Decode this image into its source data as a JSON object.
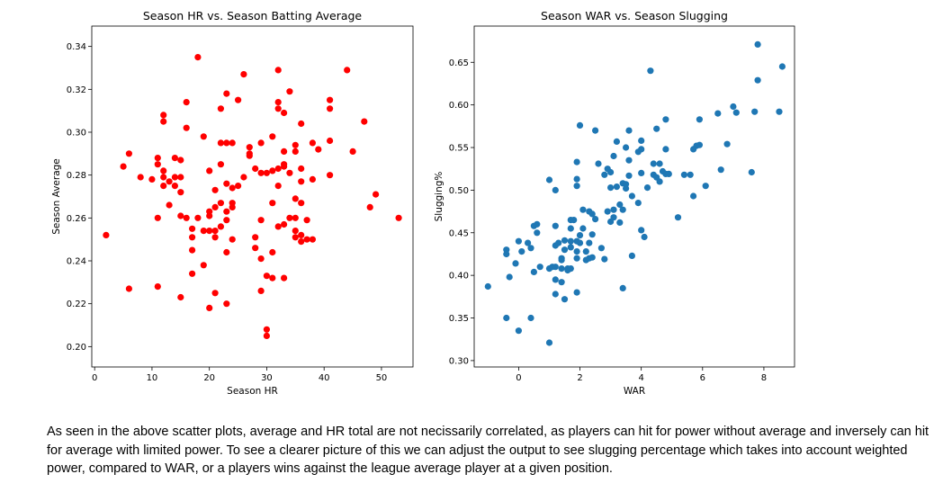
{
  "chart_data": [
    {
      "type": "scatter",
      "title": "Season HR vs. Season Batting Average",
      "xlabel": "Season HR",
      "ylabel": "Season Average",
      "xlim": [
        -0.5,
        55.5
      ],
      "ylim": [
        0.1905,
        0.3495
      ],
      "xticks": [
        0,
        10,
        20,
        30,
        40,
        50
      ],
      "yticks": [
        0.2,
        0.22,
        0.24,
        0.26,
        0.28,
        0.3,
        0.32,
        0.34
      ],
      "ytick_labels": [
        "0.20",
        "0.22",
        "0.24",
        "0.26",
        "0.28",
        "0.30",
        "0.32",
        "0.34"
      ],
      "grid": false,
      "color": "#ff0000",
      "points": [
        [
          2,
          0.252
        ],
        [
          5,
          0.284
        ],
        [
          6,
          0.29
        ],
        [
          6,
          0.227
        ],
        [
          8,
          0.279
        ],
        [
          10,
          0.278
        ],
        [
          11,
          0.288
        ],
        [
          11,
          0.285
        ],
        [
          11,
          0.26
        ],
        [
          11,
          0.228
        ],
        [
          12,
          0.308
        ],
        [
          12,
          0.305
        ],
        [
          12,
          0.282
        ],
        [
          12,
          0.279
        ],
        [
          12,
          0.275
        ],
        [
          13,
          0.277
        ],
        [
          13,
          0.266
        ],
        [
          14,
          0.288
        ],
        [
          14,
          0.279
        ],
        [
          14,
          0.275
        ],
        [
          15,
          0.287
        ],
        [
          15,
          0.279
        ],
        [
          15,
          0.272
        ],
        [
          15,
          0.261
        ],
        [
          15,
          0.223
        ],
        [
          16,
          0.314
        ],
        [
          16,
          0.302
        ],
        [
          16,
          0.26
        ],
        [
          17,
          0.255
        ],
        [
          17,
          0.251
        ],
        [
          17,
          0.245
        ],
        [
          17,
          0.234
        ],
        [
          18,
          0.335
        ],
        [
          18,
          0.26
        ],
        [
          19,
          0.298
        ],
        [
          19,
          0.254
        ],
        [
          19,
          0.238
        ],
        [
          20,
          0.282
        ],
        [
          20,
          0.263
        ],
        [
          20,
          0.261
        ],
        [
          20,
          0.254
        ],
        [
          20,
          0.218
        ],
        [
          21,
          0.273
        ],
        [
          21,
          0.265
        ],
        [
          21,
          0.254
        ],
        [
          21,
          0.251
        ],
        [
          21,
          0.225
        ],
        [
          22,
          0.311
        ],
        [
          22,
          0.295
        ],
        [
          22,
          0.285
        ],
        [
          22,
          0.267
        ],
        [
          22,
          0.256
        ],
        [
          23,
          0.318
        ],
        [
          23,
          0.295
        ],
        [
          23,
          0.276
        ],
        [
          23,
          0.263
        ],
        [
          23,
          0.259
        ],
        [
          23,
          0.244
        ],
        [
          23,
          0.22
        ],
        [
          24,
          0.295
        ],
        [
          24,
          0.274
        ],
        [
          24,
          0.267
        ],
        [
          24,
          0.265
        ],
        [
          24,
          0.25
        ],
        [
          25,
          0.315
        ],
        [
          25,
          0.275
        ],
        [
          26,
          0.327
        ],
        [
          26,
          0.279
        ],
        [
          27,
          0.293
        ],
        [
          27,
          0.29
        ],
        [
          27,
          0.289
        ],
        [
          28,
          0.283
        ],
        [
          28,
          0.251
        ],
        [
          28,
          0.246
        ],
        [
          29,
          0.295
        ],
        [
          29,
          0.281
        ],
        [
          29,
          0.259
        ],
        [
          29,
          0.241
        ],
        [
          29,
          0.226
        ],
        [
          30,
          0.281
        ],
        [
          30,
          0.233
        ],
        [
          30,
          0.208
        ],
        [
          30,
          0.205
        ],
        [
          31,
          0.298
        ],
        [
          31,
          0.282
        ],
        [
          31,
          0.267
        ],
        [
          31,
          0.244
        ],
        [
          31,
          0.232
        ],
        [
          32,
          0.329
        ],
        [
          32,
          0.314
        ],
        [
          32,
          0.311
        ],
        [
          32,
          0.283
        ],
        [
          32,
          0.275
        ],
        [
          32,
          0.256
        ],
        [
          33,
          0.309
        ],
        [
          33,
          0.291
        ],
        [
          33,
          0.285
        ],
        [
          33,
          0.284
        ],
        [
          33,
          0.257
        ],
        [
          33,
          0.232
        ],
        [
          34,
          0.319
        ],
        [
          34,
          0.281
        ],
        [
          34,
          0.26
        ],
        [
          35,
          0.294
        ],
        [
          35,
          0.291
        ],
        [
          35,
          0.269
        ],
        [
          35,
          0.26
        ],
        [
          35,
          0.254
        ],
        [
          35,
          0.251
        ],
        [
          36,
          0.304
        ],
        [
          36,
          0.283
        ],
        [
          36,
          0.277
        ],
        [
          36,
          0.267
        ],
        [
          36,
          0.252
        ],
        [
          36,
          0.249
        ],
        [
          37,
          0.259
        ],
        [
          37,
          0.25
        ],
        [
          38,
          0.295
        ],
        [
          38,
          0.278
        ],
        [
          38,
          0.25
        ],
        [
          39,
          0.292
        ],
        [
          41,
          0.315
        ],
        [
          41,
          0.311
        ],
        [
          41,
          0.296
        ],
        [
          41,
          0.28
        ],
        [
          44,
          0.329
        ],
        [
          45,
          0.291
        ],
        [
          47,
          0.305
        ],
        [
          48,
          0.265
        ],
        [
          49,
          0.271
        ],
        [
          53,
          0.26
        ]
      ]
    },
    {
      "type": "scatter",
      "title": "Season WAR vs. Season Slugging",
      "xlabel": "WAR",
      "ylabel": "Slugging%",
      "xlim": [
        -1.45,
        9.0
      ],
      "ylim": [
        0.2925,
        0.6925
      ],
      "xticks": [
        0,
        2,
        4,
        6,
        8
      ],
      "yticks": [
        0.3,
        0.35,
        0.4,
        0.45,
        0.5,
        0.55,
        0.6,
        0.65
      ],
      "ytick_labels": [
        "0.30",
        "0.35",
        "0.40",
        "0.45",
        "0.50",
        "0.55",
        "0.60",
        "0.65"
      ],
      "grid": false,
      "color": "#1f77b4",
      "points": [
        [
          -1.0,
          0.387
        ],
        [
          -0.4,
          0.43
        ],
        [
          -0.4,
          0.425
        ],
        [
          -0.4,
          0.35
        ],
        [
          -0.3,
          0.398
        ],
        [
          -0.1,
          0.414
        ],
        [
          0.0,
          0.44
        ],
        [
          0.0,
          0.335
        ],
        [
          0.1,
          0.428
        ],
        [
          0.3,
          0.438
        ],
        [
          0.4,
          0.432
        ],
        [
          0.4,
          0.35
        ],
        [
          0.5,
          0.458
        ],
        [
          0.5,
          0.404
        ],
        [
          0.6,
          0.46
        ],
        [
          0.6,
          0.45
        ],
        [
          0.7,
          0.41
        ],
        [
          1.0,
          0.512
        ],
        [
          1.0,
          0.408
        ],
        [
          1.0,
          0.321
        ],
        [
          1.1,
          0.41
        ],
        [
          1.2,
          0.5
        ],
        [
          1.2,
          0.458
        ],
        [
          1.2,
          0.435
        ],
        [
          1.2,
          0.41
        ],
        [
          1.2,
          0.395
        ],
        [
          1.2,
          0.378
        ],
        [
          1.3,
          0.438
        ],
        [
          1.4,
          0.42
        ],
        [
          1.4,
          0.418
        ],
        [
          1.4,
          0.408
        ],
        [
          1.4,
          0.392
        ],
        [
          1.5,
          0.441
        ],
        [
          1.5,
          0.43
        ],
        [
          1.5,
          0.372
        ],
        [
          1.6,
          0.408
        ],
        [
          1.6,
          0.406
        ],
        [
          1.7,
          0.465
        ],
        [
          1.7,
          0.455
        ],
        [
          1.7,
          0.44
        ],
        [
          1.7,
          0.433
        ],
        [
          1.7,
          0.408
        ],
        [
          1.8,
          0.465
        ],
        [
          1.9,
          0.533
        ],
        [
          1.9,
          0.513
        ],
        [
          1.9,
          0.505
        ],
        [
          1.9,
          0.44
        ],
        [
          1.9,
          0.428
        ],
        [
          1.9,
          0.42
        ],
        [
          1.9,
          0.38
        ],
        [
          2.0,
          0.576
        ],
        [
          2.0,
          0.447
        ],
        [
          2.0,
          0.438
        ],
        [
          2.1,
          0.477
        ],
        [
          2.1,
          0.455
        ],
        [
          2.2,
          0.428
        ],
        [
          2.2,
          0.418
        ],
        [
          2.3,
          0.475
        ],
        [
          2.3,
          0.438
        ],
        [
          2.3,
          0.42
        ],
        [
          2.4,
          0.472
        ],
        [
          2.4,
          0.448
        ],
        [
          2.4,
          0.421
        ],
        [
          2.5,
          0.57
        ],
        [
          2.5,
          0.466
        ],
        [
          2.6,
          0.531
        ],
        [
          2.7,
          0.432
        ],
        [
          2.8,
          0.518
        ],
        [
          2.8,
          0.419
        ],
        [
          2.9,
          0.525
        ],
        [
          2.9,
          0.475
        ],
        [
          3.0,
          0.521
        ],
        [
          3.0,
          0.503
        ],
        [
          3.0,
          0.463
        ],
        [
          3.1,
          0.54
        ],
        [
          3.1,
          0.477
        ],
        [
          3.1,
          0.468
        ],
        [
          3.2,
          0.557
        ],
        [
          3.2,
          0.504
        ],
        [
          3.3,
          0.483
        ],
        [
          3.3,
          0.462
        ],
        [
          3.4,
          0.508
        ],
        [
          3.4,
          0.477
        ],
        [
          3.4,
          0.385
        ],
        [
          3.5,
          0.55
        ],
        [
          3.5,
          0.507
        ],
        [
          3.5,
          0.502
        ],
        [
          3.6,
          0.57
        ],
        [
          3.6,
          0.535
        ],
        [
          3.6,
          0.517
        ],
        [
          3.7,
          0.493
        ],
        [
          3.7,
          0.423
        ],
        [
          3.9,
          0.545
        ],
        [
          3.9,
          0.485
        ],
        [
          4.0,
          0.558
        ],
        [
          4.0,
          0.548
        ],
        [
          4.0,
          0.52
        ],
        [
          4.0,
          0.453
        ],
        [
          4.1,
          0.445
        ],
        [
          4.2,
          0.503
        ],
        [
          4.3,
          0.64
        ],
        [
          4.4,
          0.531
        ],
        [
          4.4,
          0.518
        ],
        [
          4.5,
          0.572
        ],
        [
          4.5,
          0.515
        ],
        [
          4.6,
          0.531
        ],
        [
          4.6,
          0.51
        ],
        [
          4.7,
          0.522
        ],
        [
          4.8,
          0.583
        ],
        [
          4.8,
          0.548
        ],
        [
          4.8,
          0.519
        ],
        [
          4.9,
          0.519
        ],
        [
          5.2,
          0.468
        ],
        [
          5.4,
          0.518
        ],
        [
          5.6,
          0.518
        ],
        [
          5.7,
          0.548
        ],
        [
          5.7,
          0.493
        ],
        [
          5.8,
          0.552
        ],
        [
          5.9,
          0.583
        ],
        [
          5.9,
          0.553
        ],
        [
          6.1,
          0.505
        ],
        [
          6.5,
          0.59
        ],
        [
          6.6,
          0.524
        ],
        [
          6.8,
          0.554
        ],
        [
          7.0,
          0.598
        ],
        [
          7.1,
          0.591
        ],
        [
          7.6,
          0.521
        ],
        [
          7.7,
          0.592
        ],
        [
          7.8,
          0.671
        ],
        [
          7.8,
          0.629
        ],
        [
          8.5,
          0.592
        ],
        [
          8.6,
          0.645
        ]
      ]
    }
  ],
  "caption": "As seen in the above scatter plots, average and HR total are not necissarily correlated, as players can hit for power without average and inversely can hit for average with limited power. To see a clearer picture of this we can adjust the output to see slugging percentage which takes into account weighted power, compared to WAR, or a players wins against the league average player at a given position."
}
